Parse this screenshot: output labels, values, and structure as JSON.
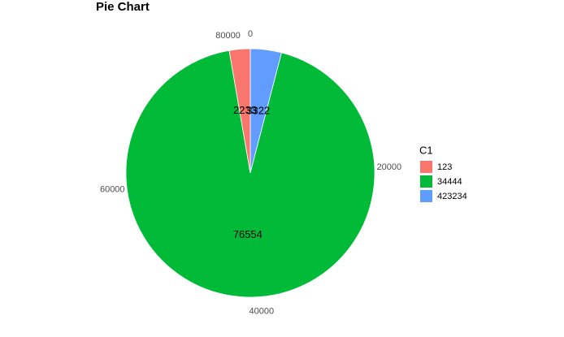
{
  "chart_data": {
    "type": "pie",
    "title": "Pie Chart",
    "legend_title": "C1",
    "categories": [
      "123",
      "34444",
      "423234"
    ],
    "values": [
      2233,
      76554,
      3322
    ],
    "colors": [
      "#f8766d",
      "#00ba38",
      "#619cff"
    ],
    "thetalim": [
      0,
      82109
    ],
    "thetaticks": [
      0,
      20000,
      40000,
      60000,
      80000
    ],
    "legend": "right"
  }
}
